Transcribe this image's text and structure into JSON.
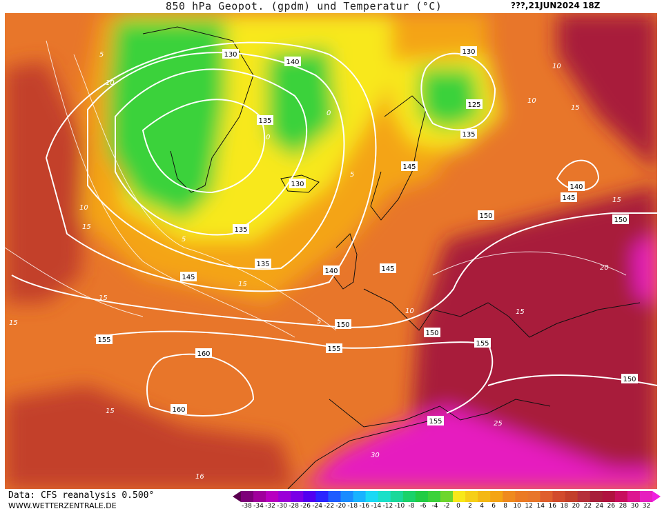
{
  "header": {
    "title": "850 hPa Geopot. (gpdm) und Temperatur (°C)",
    "date": "???,21JUN2024 18Z"
  },
  "footer": {
    "source": "Data: CFS reanalysis 0.500°",
    "website": "WWW.WETTERZENTRALE.DE"
  },
  "colors": {
    "ocean_warm": "#e8762a",
    "orange": "#ef8a1e",
    "amber": "#f4a414",
    "yellow": "#f8e81a",
    "green": "#3bd23a",
    "red": "#c33f2a",
    "dark_red": "#a81f3a",
    "crimson": "#b0123f",
    "magenta": "#e61fbf",
    "contour": "#ffffff"
  },
  "contour_labels": {
    "geopotential": [
      "130",
      "140",
      "130",
      "125",
      "135",
      "135",
      "130",
      "145",
      "140",
      "145",
      "150",
      "135",
      "135",
      "145",
      "140",
      "145",
      "150",
      "150",
      "150",
      "155",
      "155",
      "155",
      "160",
      "160",
      "150",
      "155"
    ],
    "temperature": [
      "5",
      "10",
      "15",
      "5",
      "10",
      "15",
      "10",
      "15",
      "5",
      "0",
      "0",
      "10",
      "15",
      "5",
      "10",
      "15",
      "20",
      "15",
      "25",
      "30",
      "16",
      "15",
      "15"
    ]
  },
  "legend": {
    "ticks": [
      "-38",
      "-34",
      "-32",
      "-30",
      "-28",
      "-26",
      "-24",
      "-22",
      "-20",
      "-18",
      "-16",
      "-14",
      "-12",
      "-10",
      "-8",
      "-6",
      "-4",
      "-2",
      "0",
      "2",
      "4",
      "6",
      "8",
      "10",
      "12",
      "14",
      "16",
      "18",
      "20",
      "22",
      "24",
      "26",
      "28",
      "30",
      "32"
    ],
    "colors": [
      "#5a0050",
      "#7d0079",
      "#a0009c",
      "#b800c0",
      "#9b00d8",
      "#7a00e6",
      "#5200f0",
      "#2a24ff",
      "#1f5cff",
      "#1a8cff",
      "#19b3ff",
      "#1ad9f5",
      "#1ae0c8",
      "#1ad89a",
      "#1ad26a",
      "#21cc44",
      "#3bd23a",
      "#6ed62e",
      "#f8e81a",
      "#f6cf17",
      "#f4b814",
      "#f4a414",
      "#ef8a1e",
      "#eb7a24",
      "#e8762a",
      "#df5f2d",
      "#d24b2c",
      "#c33f2a",
      "#b5303a",
      "#a81f3a",
      "#b0123f",
      "#c80e5e",
      "#dd1690",
      "#e61fbf",
      "#f01fe0"
    ]
  }
}
